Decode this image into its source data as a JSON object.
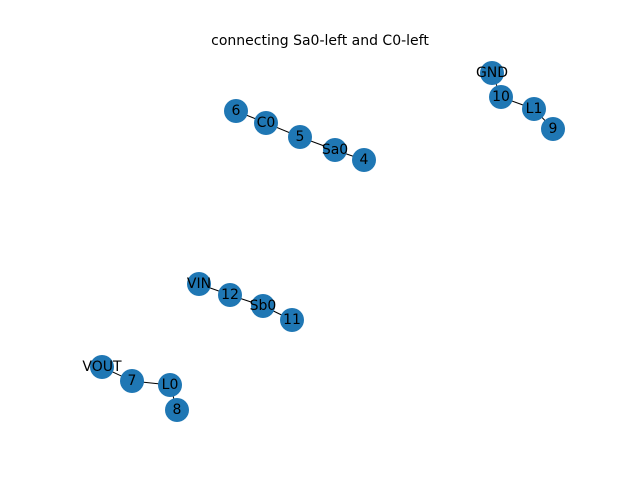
{
  "figure": {
    "title": "connecting Sa0-left and C0-left",
    "node_color": "#1f77b4",
    "edge_color": "#000000"
  },
  "graph": {
    "nodes": [
      "6",
      "C0",
      "5",
      "Sa0",
      "4",
      "GND",
      "10",
      "L1",
      "9",
      "VIN",
      "12",
      "Sb0",
      "11",
      "VOUT",
      "7",
      "L0",
      "8"
    ],
    "edges": [
      [
        "6",
        "C0"
      ],
      [
        "C0",
        "5"
      ],
      [
        "5",
        "Sa0"
      ],
      [
        "Sa0",
        "4"
      ],
      [
        "GND",
        "10"
      ],
      [
        "10",
        "L1"
      ],
      [
        "L1",
        "9"
      ],
      [
        "VIN",
        "12"
      ],
      [
        "12",
        "Sb0"
      ],
      [
        "Sb0",
        "11"
      ],
      [
        "VOUT",
        "7"
      ],
      [
        "7",
        "L0"
      ],
      [
        "L0",
        "8"
      ]
    ]
  }
}
